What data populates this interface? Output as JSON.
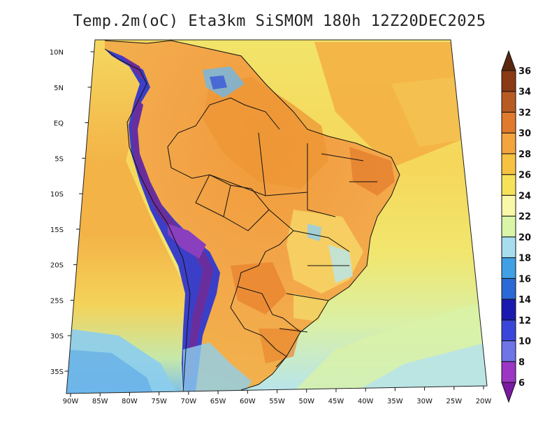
{
  "title": "Temp.2m(oC) Eta3km SiSMOM 180h 12Z20DEC2025",
  "map": {
    "variable": "2 m air temperature",
    "units": "oC",
    "lon_range": [
      -91,
      -20
    ],
    "lat_range": [
      -38,
      11
    ],
    "lat_ticks": [
      {
        "lat": 10,
        "label": "10N"
      },
      {
        "lat": 5,
        "label": "5N"
      },
      {
        "lat": 0,
        "label": "EQ"
      },
      {
        "lat": -5,
        "label": "5S"
      },
      {
        "lat": -10,
        "label": "10S"
      },
      {
        "lat": -15,
        "label": "15S"
      },
      {
        "lat": -20,
        "label": "20S"
      },
      {
        "lat": -25,
        "label": "25S"
      },
      {
        "lat": -30,
        "label": "30S"
      },
      {
        "lat": -35,
        "label": "35S"
      }
    ],
    "lon_ticks": [
      {
        "lon": -90,
        "label": "90W"
      },
      {
        "lon": -85,
        "label": "85W"
      },
      {
        "lon": -80,
        "label": "80W"
      },
      {
        "lon": -75,
        "label": "75W"
      },
      {
        "lon": -70,
        "label": "70W"
      },
      {
        "lon": -65,
        "label": "65W"
      },
      {
        "lon": -60,
        "label": "60W"
      },
      {
        "lon": -55,
        "label": "55W"
      },
      {
        "lon": -50,
        "label": "50W"
      },
      {
        "lon": -45,
        "label": "45W"
      },
      {
        "lon": -40,
        "label": "40W"
      },
      {
        "lon": -35,
        "label": "35W"
      },
      {
        "lon": -30,
        "label": "30W"
      },
      {
        "lon": -25,
        "label": "25W"
      },
      {
        "lon": -20,
        "label": "20W"
      }
    ],
    "regions": [
      {
        "name": "ocean-warm-north",
        "color": "#f5e25a"
      },
      {
        "name": "ocean-cool-south",
        "color": "#a8dcef"
      },
      {
        "name": "amazon-hot",
        "color": "#f3a43d"
      },
      {
        "name": "andes-cold",
        "color": "#6b2d9b"
      }
    ]
  },
  "colorbar": {
    "levels": [
      "6",
      "8",
      "10",
      "12",
      "14",
      "16",
      "18",
      "20",
      "22",
      "24",
      "26",
      "28",
      "30",
      "32",
      "34",
      "36"
    ],
    "colors": [
      "#7a1aa0",
      "#9c36c4",
      "#6f74e6",
      "#3a46d9",
      "#1a1ab0",
      "#2a6ad6",
      "#3fa0e6",
      "#a8dcef",
      "#d8f5a8",
      "#f8f8a8",
      "#f5e25a",
      "#f5c242",
      "#f3a43d",
      "#e07a2c",
      "#b85b22",
      "#8a3a14",
      "#5a2610"
    ]
  }
}
